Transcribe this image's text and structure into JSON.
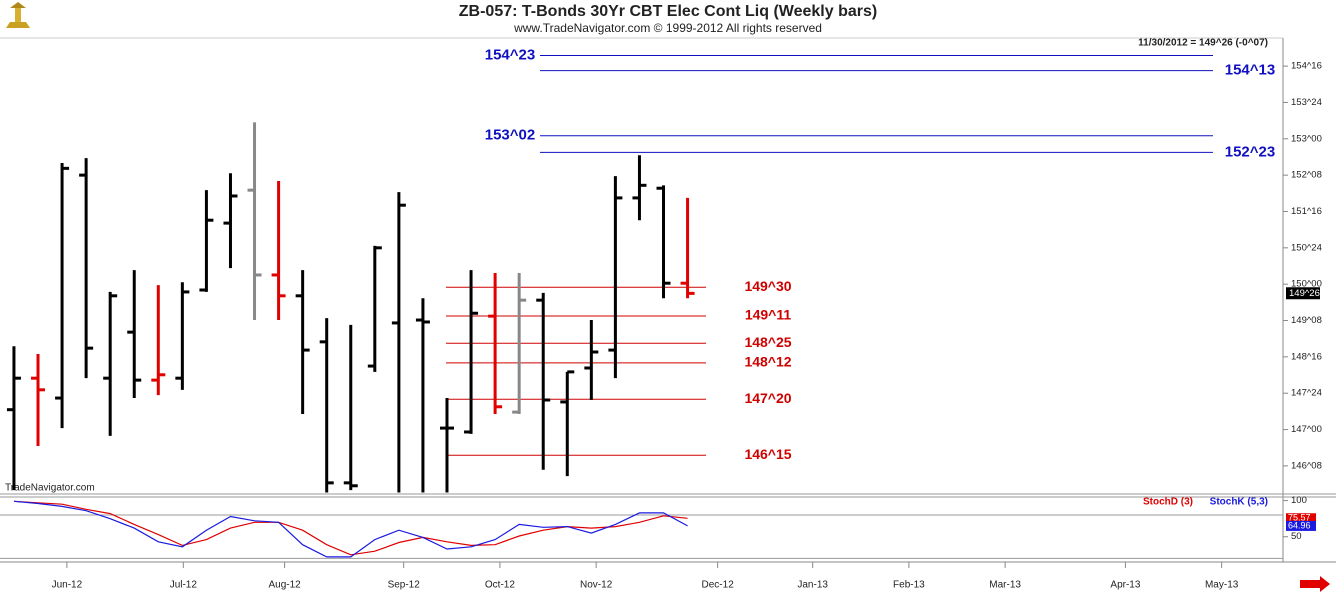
{
  "chart_data": [
    {
      "type": "ohlc",
      "title": "ZB-057:  T-Bonds 30Yr CBT Elec Cont Liq  (Weekly bars)",
      "subtitle": "www.TradeNavigator.com © 1999-2012 All rights reserved",
      "annotation": "11/30/2012 = 149^26 (-0^07)",
      "watermark": "TradeNavigator.com",
      "categories": [
        null,
        null,
        null,
        null,
        null,
        null,
        null,
        null,
        null,
        null,
        null,
        null,
        null,
        null,
        null,
        null,
        null,
        null,
        null,
        null,
        null,
        null,
        null,
        null,
        null,
        null,
        null,
        null,
        null
      ],
      "xlim": [
        -0.58,
        52.75
      ],
      "open": [
        147.41,
        148.06,
        147.65,
        152.25,
        148.06,
        149.01,
        148.02,
        148.06,
        149.88,
        151.26,
        151.94,
        150.19,
        149.76,
        148.81,
        145.9,
        148.31,
        149.2,
        149.26,
        147.03,
        146.95,
        149.34,
        147.36,
        149.67,
        147.57,
        148.27,
        148.64,
        151.78,
        151.98,
        150.02
      ],
      "high": [
        148.72,
        148.56,
        152.5,
        152.6,
        149.84,
        150.29,
        149.98,
        150.04,
        151.94,
        152.29,
        153.34,
        152.13,
        150.29,
        149.3,
        149.16,
        150.79,
        151.9,
        149.71,
        147.65,
        150.29,
        150.23,
        150.23,
        149.82,
        148.19,
        149.26,
        152.23,
        152.66,
        152.04,
        151.78
      ],
      "low": [
        145.75,
        146.66,
        147.03,
        148.06,
        146.87,
        147.65,
        147.71,
        147.82,
        149.84,
        150.33,
        149.26,
        149.26,
        147.32,
        145.7,
        145.75,
        148.19,
        145.7,
        145.7,
        145.7,
        146.91,
        147.32,
        147.32,
        146.17,
        146.04,
        147.61,
        148.06,
        151.32,
        149.71,
        149.71
      ],
      "close": [
        148.06,
        147.82,
        152.39,
        148.68,
        149.76,
        148.02,
        148.13,
        149.84,
        151.32,
        151.82,
        150.19,
        149.76,
        148.64,
        145.9,
        145.84,
        150.75,
        151.63,
        149.22,
        147.03,
        149.4,
        147.47,
        149.67,
        147.61,
        148.19,
        148.6,
        151.78,
        152.04,
        150.02,
        149.81
      ],
      "colors": [
        "#000000",
        "#e00000",
        "#000000",
        "#000000",
        "#000000",
        "#000000",
        "#e00000",
        "#000000",
        "#000000",
        "#000000",
        "#888888",
        "#e00000",
        "#000000",
        "#000000",
        "#000000",
        "#000000",
        "#000000",
        "#000000",
        "#000000",
        "#000000",
        "#e00000",
        "#888888",
        "#000000",
        "#000000",
        "#000000",
        "#000000",
        "#000000",
        "#000000",
        "#e00000"
      ],
      "ylim": [
        145.67,
        155.08
      ],
      "yticks": [
        {
          "value": 146.25,
          "label": "146^08"
        },
        {
          "value": 147,
          "label": "147^00"
        },
        {
          "value": 147.75,
          "label": "147^24"
        },
        {
          "value": 148.5,
          "label": "148^16"
        },
        {
          "value": 149.25,
          "label": "149^08"
        },
        {
          "value": 150,
          "label": "150^00"
        },
        {
          "value": 150.75,
          "label": "150^24"
        },
        {
          "value": 151.5,
          "label": "151^16"
        },
        {
          "value": 152.25,
          "label": "152^08"
        },
        {
          "value": 153,
          "label": "153^00"
        },
        {
          "value": 153.75,
          "label": "153^24"
        },
        {
          "value": 154.5,
          "label": "154^16"
        }
      ],
      "last_price": {
        "value": 149.8125,
        "label": "149^26"
      },
      "levels": [
        {
          "value": 154.71875,
          "label": "154^23",
          "color": "#1010c0"
        },
        {
          "value": 154.40625,
          "label": "154^13",
          "color": "#1010c0"
        },
        {
          "value": 153.0625,
          "label": "153^02",
          "color": "#1010c0"
        },
        {
          "value": 152.71875,
          "label": "152^23",
          "color": "#1010c0"
        },
        {
          "value": 149.9375,
          "label": "149^30",
          "color": "#d00000"
        },
        {
          "value": 149.34375,
          "label": "149^11",
          "color": "#d00000"
        },
        {
          "value": 148.78125,
          "label": "148^25",
          "color": "#d00000"
        },
        {
          "value": 148.375,
          "label": "148^12",
          "color": "#d00000"
        },
        {
          "value": 147.625,
          "label": "147^20",
          "color": "#d00000"
        },
        {
          "value": 146.46875,
          "label": "146^15",
          "color": "#d00000"
        }
      ]
    },
    {
      "type": "line",
      "categories": [
        null,
        null,
        null,
        null,
        null,
        null,
        null,
        null,
        null,
        null,
        null,
        null,
        null,
        null,
        null,
        null,
        null,
        null,
        null,
        null,
        null,
        null,
        null,
        null,
        null,
        null,
        null,
        null,
        null
      ],
      "xlim": [
        -0.58,
        52.75
      ],
      "xticks": [
        {
          "value": 2.2,
          "label": "Jun-12"
        },
        {
          "value": 7.04,
          "label": "Jul-12"
        },
        {
          "value": 11.25,
          "label": "Aug-12"
        },
        {
          "value": 16.2,
          "label": "Sep-12"
        },
        {
          "value": 20.2,
          "label": "Oct-12"
        },
        {
          "value": 24.2,
          "label": "Nov-12"
        },
        {
          "value": 29.25,
          "label": "Dec-12"
        },
        {
          "value": 33.2,
          "label": "Jan-13"
        },
        {
          "value": 37.2,
          "label": "Feb-13"
        },
        {
          "value": 41.2,
          "label": "Mar-13"
        },
        {
          "value": 46.2,
          "label": "Apr-13"
        },
        {
          "value": 50.2,
          "label": "May-13"
        }
      ],
      "ylim": [
        15,
        105
      ],
      "yticks": [
        50,
        100
      ],
      "levels": [
        80,
        20
      ],
      "series": [
        {
          "name": "StochD (3)",
          "color": "#e00000",
          "values": [
            99,
            97,
            95,
            88,
            82,
            67,
            53,
            38,
            46,
            62,
            70,
            70,
            59,
            39,
            25,
            30,
            42,
            49,
            43,
            38,
            39,
            51,
            59,
            64,
            62,
            64,
            70,
            79,
            75.57
          ]
        },
        {
          "name": "StochK (5,3)",
          "color": "#1a1ae0",
          "values": [
            99,
            96,
            92,
            86,
            75,
            62,
            43,
            36,
            59,
            78,
            72,
            70,
            39,
            22,
            22,
            46,
            59,
            49,
            33,
            36,
            46,
            67,
            63,
            64,
            55,
            67,
            83,
            83,
            64.96
          ]
        }
      ]
    }
  ]
}
